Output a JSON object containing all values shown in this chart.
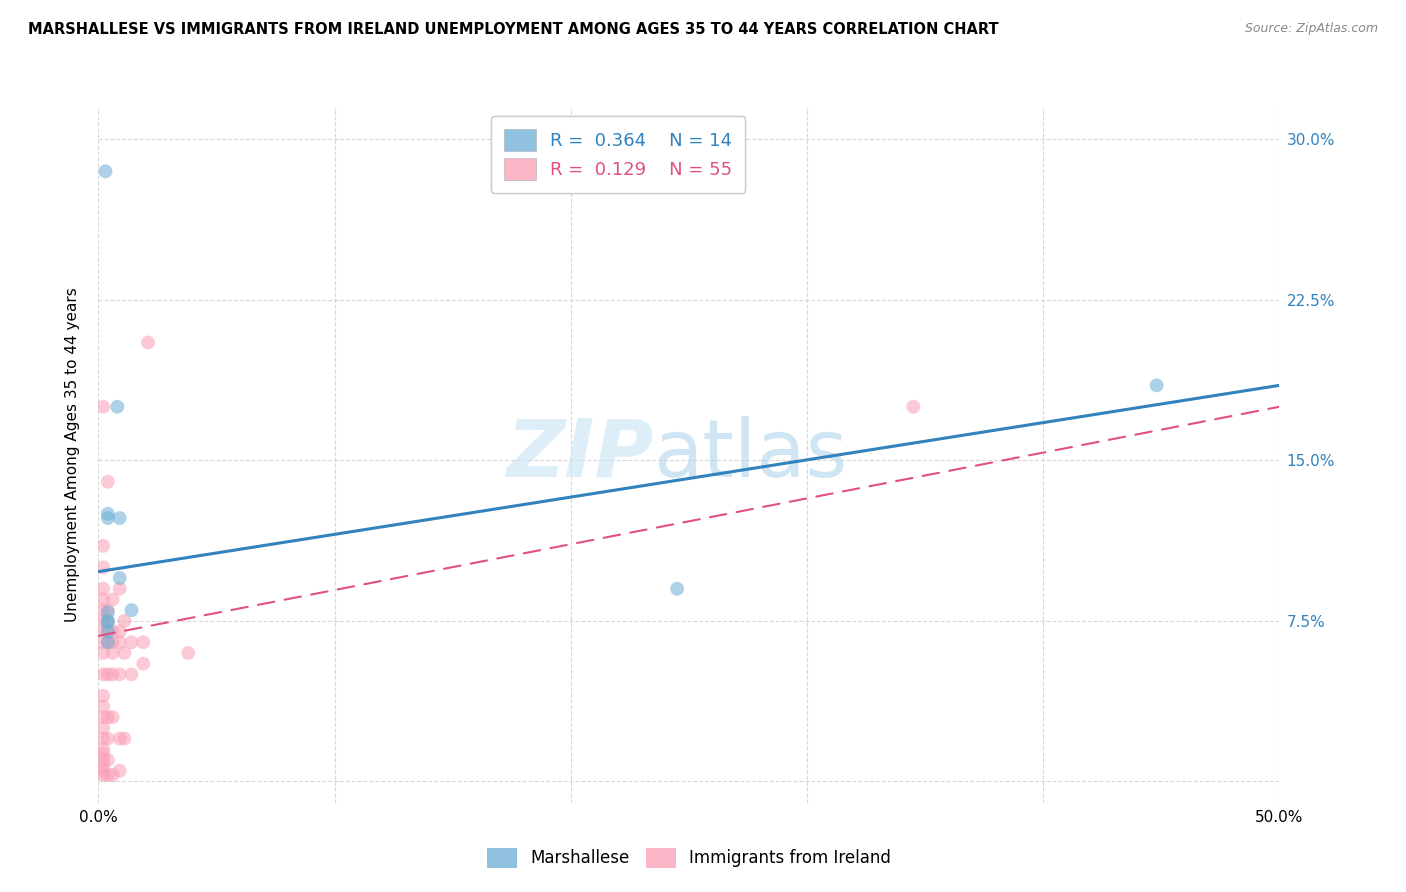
{
  "title": "MARSHALLESE VS IMMIGRANTS FROM IRELAND UNEMPLOYMENT AMONG AGES 35 TO 44 YEARS CORRELATION CHART",
  "source": "Source: ZipAtlas.com",
  "ylabel": "Unemployment Among Ages 35 to 44 years",
  "xlim": [
    0.0,
    0.5
  ],
  "ylim": [
    -0.01,
    0.315
  ],
  "xticks": [
    0.0,
    0.1,
    0.2,
    0.3,
    0.4,
    0.5
  ],
  "yticks": [
    0.0,
    0.075,
    0.15,
    0.225,
    0.3
  ],
  "ytick_labels_left": [
    "",
    "",
    "",
    "",
    ""
  ],
  "xtick_labels": [
    "0.0%",
    "",
    "",
    "",
    "",
    "50.0%"
  ],
  "ytick_labels_right": [
    "",
    "7.5%",
    "15.0%",
    "22.5%",
    "30.0%"
  ],
  "marshallese_color": "#6baed6",
  "ireland_color": "#fa9fb5",
  "marshallese_label": "Marshallese",
  "ireland_label": "Immigrants from Ireland",
  "R_marshallese": 0.364,
  "N_marshallese": 14,
  "R_ireland": 0.129,
  "N_ireland": 55,
  "watermark_zip": "ZIP",
  "watermark_atlas": "atlas",
  "marshallese_x": [
    0.003,
    0.008,
    0.004,
    0.004,
    0.009,
    0.009,
    0.014,
    0.004,
    0.004,
    0.245,
    0.448,
    0.004,
    0.004,
    0.004
  ],
  "marshallese_y": [
    0.285,
    0.175,
    0.125,
    0.123,
    0.123,
    0.095,
    0.08,
    0.079,
    0.075,
    0.09,
    0.185,
    0.074,
    0.07,
    0.065
  ],
  "ireland_x": [
    0.002,
    0.002,
    0.002,
    0.002,
    0.002,
    0.002,
    0.002,
    0.002,
    0.002,
    0.002,
    0.002,
    0.002,
    0.002,
    0.002,
    0.002,
    0.002,
    0.002,
    0.002,
    0.002,
    0.002,
    0.002,
    0.002,
    0.004,
    0.004,
    0.004,
    0.004,
    0.004,
    0.004,
    0.004,
    0.004,
    0.004,
    0.004,
    0.006,
    0.006,
    0.006,
    0.006,
    0.006,
    0.006,
    0.006,
    0.009,
    0.009,
    0.009,
    0.009,
    0.009,
    0.009,
    0.011,
    0.011,
    0.011,
    0.014,
    0.014,
    0.019,
    0.019,
    0.021,
    0.038,
    0.345
  ],
  "ireland_y": [
    0.003,
    0.005,
    0.007,
    0.01,
    0.013,
    0.015,
    0.02,
    0.025,
    0.03,
    0.035,
    0.04,
    0.05,
    0.06,
    0.065,
    0.07,
    0.075,
    0.08,
    0.085,
    0.09,
    0.1,
    0.11,
    0.175,
    0.003,
    0.01,
    0.02,
    0.03,
    0.05,
    0.065,
    0.07,
    0.075,
    0.08,
    0.14,
    0.003,
    0.03,
    0.05,
    0.06,
    0.065,
    0.07,
    0.085,
    0.005,
    0.02,
    0.05,
    0.065,
    0.07,
    0.09,
    0.02,
    0.06,
    0.075,
    0.05,
    0.065,
    0.055,
    0.065,
    0.205,
    0.06,
    0.175
  ],
  "blue_line_x": [
    0.0,
    0.5
  ],
  "blue_line_y": [
    0.098,
    0.185
  ],
  "pink_line_x": [
    0.0,
    0.5
  ],
  "pink_line_y": [
    0.068,
    0.175
  ],
  "background_color": "#ffffff",
  "grid_color": "#d8d8d8",
  "marker_size": 100
}
